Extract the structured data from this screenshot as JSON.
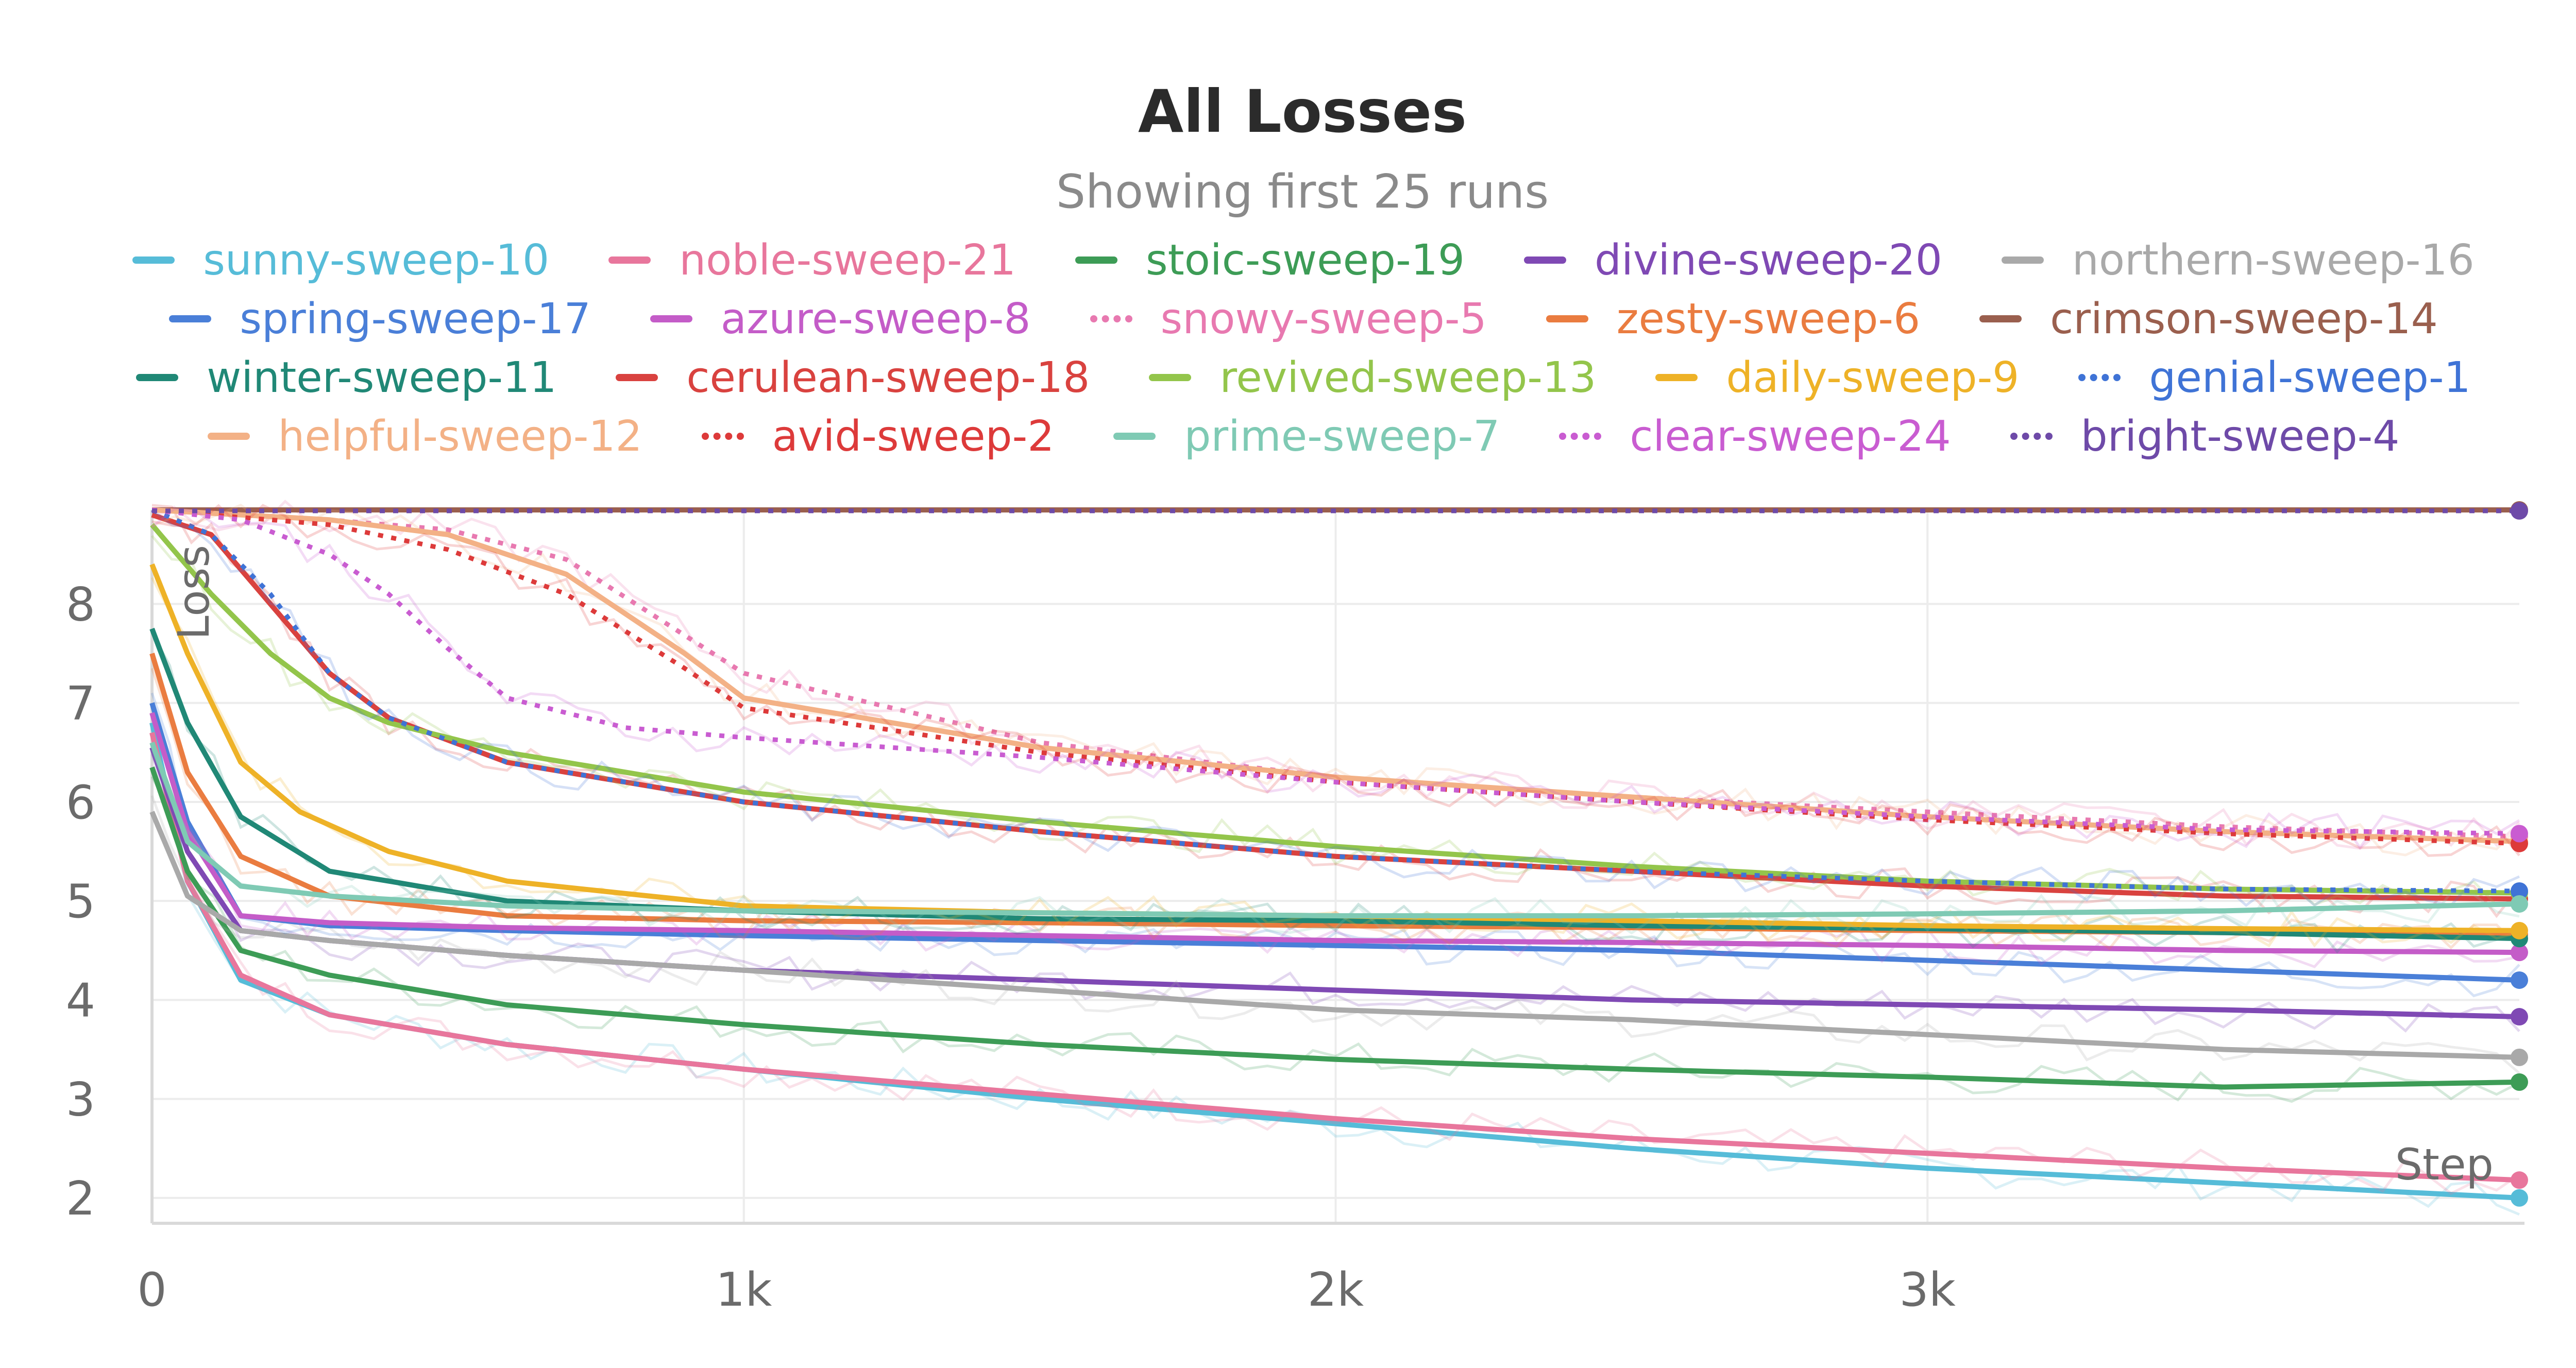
{
  "chart_data": {
    "type": "line",
    "title": "All Losses",
    "subtitle": "Showing first 25 runs",
    "xlabel": "Step",
    "ylabel": "Loss",
    "xlim": [
      0,
      4000
    ],
    "ylim": [
      1.9,
      8.95
    ],
    "x_ticks": [
      0,
      1000,
      2000,
      3000
    ],
    "x_tick_labels": [
      "0",
      "1k",
      "2k",
      "3k"
    ],
    "y_ticks": [
      2,
      3,
      4,
      5,
      6,
      7,
      8
    ],
    "y_tick_labels": [
      "2",
      "3",
      "4",
      "5",
      "6",
      "7",
      "8"
    ],
    "grid": true,
    "legend_placement": "top",
    "series": [
      {
        "name": "sunny-sweep-10",
        "color": "#56bcd8",
        "dash": "solid",
        "x": [
          0,
          60,
          150,
          300,
          600,
          1000,
          1500,
          2000,
          2500,
          3000,
          3500,
          4000
        ],
        "y": [
          6.8,
          5.2,
          4.2,
          3.85,
          3.55,
          3.3,
          3.0,
          2.75,
          2.5,
          2.3,
          2.15,
          2.0
        ]
      },
      {
        "name": "noble-sweep-21",
        "color": "#e8769c",
        "dash": "solid",
        "x": [
          0,
          60,
          150,
          300,
          600,
          1000,
          1500,
          2000,
          2500,
          3000,
          3500,
          4000
        ],
        "y": [
          6.7,
          5.2,
          4.25,
          3.85,
          3.55,
          3.3,
          3.05,
          2.8,
          2.6,
          2.45,
          2.3,
          2.18
        ]
      },
      {
        "name": "stoic-sweep-19",
        "color": "#3d9c56",
        "dash": "solid",
        "x": [
          0,
          60,
          150,
          300,
          600,
          1000,
          1500,
          2000,
          2500,
          3000,
          3500,
          4000
        ],
        "y": [
          6.35,
          5.3,
          4.5,
          4.25,
          3.95,
          3.75,
          3.55,
          3.4,
          3.3,
          3.22,
          3.12,
          3.17
        ]
      },
      {
        "name": "divine-sweep-20",
        "color": "#7f49b4",
        "dash": "solid",
        "x": [
          0,
          60,
          150,
          300,
          600,
          1000,
          1500,
          2000,
          2500,
          3000,
          3500,
          4000
        ],
        "y": [
          6.55,
          5.5,
          4.7,
          4.6,
          4.45,
          4.3,
          4.2,
          4.1,
          4.0,
          3.95,
          3.9,
          3.83
        ]
      },
      {
        "name": "northern-sweep-16",
        "color": "#a9a9a9",
        "dash": "solid",
        "x": [
          0,
          60,
          150,
          300,
          600,
          1000,
          1500,
          2000,
          2500,
          3000,
          3500,
          4000
        ],
        "y": [
          5.9,
          5.05,
          4.7,
          4.6,
          4.45,
          4.3,
          4.1,
          3.9,
          3.8,
          3.65,
          3.5,
          3.42
        ]
      },
      {
        "name": "spring-sweep-17",
        "color": "#4a7fd8",
        "dash": "solid",
        "x": [
          0,
          60,
          150,
          300,
          600,
          1000,
          1500,
          2000,
          2500,
          3000,
          3500,
          4000
        ],
        "y": [
          7.0,
          5.8,
          4.85,
          4.75,
          4.7,
          4.65,
          4.6,
          4.55,
          4.5,
          4.4,
          4.3,
          4.2
        ]
      },
      {
        "name": "azure-sweep-8",
        "color": "#c45cc8",
        "dash": "solid",
        "x": [
          0,
          60,
          150,
          300,
          600,
          1000,
          1500,
          2000,
          2500,
          3000,
          3500,
          4000
        ],
        "y": [
          6.9,
          5.7,
          4.85,
          4.78,
          4.73,
          4.7,
          4.65,
          4.6,
          4.58,
          4.55,
          4.5,
          4.48
        ]
      },
      {
        "name": "snowy-sweep-5",
        "color": "#e879b0",
        "dash": "dotted",
        "x": [
          0,
          150,
          300,
          500,
          700,
          1000,
          1500,
          2000,
          2500,
          3000,
          3500,
          4000
        ],
        "y": [
          8.95,
          8.9,
          8.85,
          8.75,
          8.45,
          7.3,
          6.6,
          6.25,
          6.05,
          5.9,
          5.75,
          5.65
        ]
      },
      {
        "name": "zesty-sweep-6",
        "color": "#ea7c40",
        "dash": "solid",
        "x": [
          0,
          60,
          150,
          300,
          600,
          1000,
          1500,
          2000,
          2500,
          3000,
          3500,
          4000
        ],
        "y": [
          7.5,
          6.3,
          5.45,
          5.05,
          4.85,
          4.8,
          4.78,
          4.75,
          4.73,
          4.7,
          4.68,
          4.66
        ]
      },
      {
        "name": "crimson-sweep-14",
        "color": "#9a5f4e",
        "dash": "solid",
        "x": [
          0,
          4000
        ],
        "y": [
          8.95,
          8.95
        ]
      },
      {
        "name": "winter-sweep-11",
        "color": "#208876",
        "dash": "solid",
        "x": [
          0,
          60,
          150,
          300,
          600,
          1000,
          1500,
          2000,
          2500,
          3000,
          3500,
          4000
        ],
        "y": [
          7.75,
          6.8,
          5.85,
          5.3,
          5.0,
          4.9,
          4.82,
          4.8,
          4.75,
          4.72,
          4.68,
          4.62
        ]
      },
      {
        "name": "cerulean-sweep-18",
        "color": "#d9423f",
        "dash": "solid",
        "x": [
          0,
          100,
          200,
          300,
          400,
          600,
          1000,
          1500,
          2000,
          2500,
          3000,
          3500,
          4000
        ],
        "y": [
          8.9,
          8.7,
          8.0,
          7.3,
          6.85,
          6.4,
          6.0,
          5.7,
          5.45,
          5.3,
          5.15,
          5.05,
          5.02
        ]
      },
      {
        "name": "revived-sweep-13",
        "color": "#93c54b",
        "dash": "solid",
        "x": [
          0,
          100,
          200,
          300,
          400,
          600,
          1000,
          1500,
          2000,
          2500,
          3000,
          3500,
          4000
        ],
        "y": [
          8.8,
          8.1,
          7.5,
          7.05,
          6.8,
          6.5,
          6.1,
          5.8,
          5.55,
          5.35,
          5.2,
          5.12,
          5.08
        ]
      },
      {
        "name": "daily-sweep-9",
        "color": "#eeb227",
        "dash": "solid",
        "x": [
          0,
          60,
          150,
          250,
          400,
          600,
          1000,
          1500,
          2000,
          2500,
          3000,
          3500,
          4000
        ],
        "y": [
          8.4,
          7.5,
          6.4,
          5.9,
          5.5,
          5.2,
          4.95,
          4.88,
          4.85,
          4.8,
          4.75,
          4.72,
          4.7
        ]
      },
      {
        "name": "genial-sweep-1",
        "color": "#3f73d6",
        "dash": "dotted",
        "x": [
          0,
          100,
          200,
          300,
          400,
          600,
          1000,
          1500,
          2000,
          2500,
          3000,
          3500,
          4000
        ],
        "y": [
          8.95,
          8.7,
          8.1,
          7.3,
          6.85,
          6.4,
          6.0,
          5.7,
          5.45,
          5.3,
          5.2,
          5.12,
          5.1
        ]
      },
      {
        "name": "helpful-sweep-12",
        "color": "#f3b186",
        "dash": "solid",
        "x": [
          0,
          300,
          500,
          700,
          900,
          1000,
          1500,
          2000,
          2500,
          3000,
          3500,
          4000
        ],
        "y": [
          8.95,
          8.85,
          8.7,
          8.3,
          7.5,
          7.05,
          6.55,
          6.25,
          6.05,
          5.85,
          5.7,
          5.6
        ]
      },
      {
        "name": "avid-sweep-2",
        "color": "#dd3a3a",
        "dash": "dotted",
        "x": [
          0,
          300,
          500,
          700,
          900,
          1000,
          1500,
          2000,
          2500,
          3000,
          3500,
          4000
        ],
        "y": [
          8.95,
          8.8,
          8.55,
          8.1,
          7.35,
          6.95,
          6.5,
          6.2,
          6.0,
          5.82,
          5.68,
          5.58
        ]
      },
      {
        "name": "prime-sweep-7",
        "color": "#7fcab4",
        "dash": "solid",
        "x": [
          0,
          60,
          150,
          300,
          600,
          1000,
          1500,
          2000,
          2500,
          3000,
          3500,
          4000
        ],
        "y": [
          6.6,
          5.6,
          5.15,
          5.05,
          4.95,
          4.9,
          4.88,
          4.85,
          4.85,
          4.87,
          4.9,
          4.97
        ]
      },
      {
        "name": "clear-sweep-24",
        "color": "#c95cd1",
        "dash": "dotted",
        "x": [
          0,
          150,
          300,
          400,
          500,
          600,
          800,
          1000,
          1500,
          2000,
          2500,
          3000,
          3500,
          4000
        ],
        "y": [
          8.95,
          8.85,
          8.5,
          8.1,
          7.55,
          7.05,
          6.75,
          6.65,
          6.45,
          6.2,
          6.0,
          5.85,
          5.72,
          5.68
        ]
      },
      {
        "name": "bright-sweep-4",
        "color": "#6e4aa8",
        "dash": "dotted",
        "x": [
          0,
          4000
        ],
        "y": [
          8.94,
          8.94
        ]
      }
    ],
    "legend_rows": [
      [
        "sunny-sweep-10",
        "noble-sweep-21",
        "stoic-sweep-19",
        "divine-sweep-20",
        "northern-sweep-16"
      ],
      [
        "spring-sweep-17",
        "azure-sweep-8",
        "snowy-sweep-5",
        "zesty-sweep-6",
        "crimson-sweep-14"
      ],
      [
        "winter-sweep-11",
        "cerulean-sweep-18",
        "revived-sweep-13",
        "daily-sweep-9",
        "genial-sweep-1"
      ],
      [
        "helpful-sweep-12",
        "avid-sweep-2",
        "prime-sweep-7",
        "clear-sweep-24",
        "bright-sweep-4"
      ]
    ]
  }
}
